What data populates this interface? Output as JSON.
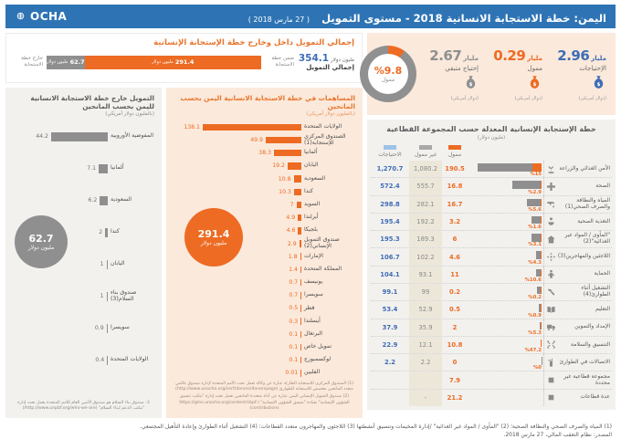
{
  "header": {
    "org": "OCHA",
    "title": "اليمن: خطة الاستجابة الانسانية 2018 - مستوى التمويل",
    "date": "( 27 مارس 2018 )"
  },
  "stats": {
    "cards": [
      {
        "value": "2.96",
        "unit": "مليار",
        "label": "الإحتياجات",
        "currency": "(دولار أمريكي)",
        "color": "#3f6db5"
      },
      {
        "value": "0.29",
        "unit": "مليار",
        "label": "ممول",
        "currency": "(دولار أمريكي)",
        "color": "#ed6b23"
      },
      {
        "value": "2.67",
        "unit": "مليار",
        "label": "إحتياج متبقي",
        "currency": "(دولار أمريكي)",
        "color": "#8f8f8f"
      }
    ],
    "donut": {
      "pct": 9.8,
      "pct_label": "%9.8",
      "label": "ممول"
    }
  },
  "summary": {
    "title": "إجمالي التمويل داخل وخارج خطة الإستجابة الإنسانية",
    "total_value": "354.1",
    "total_unit": "مليون دولار",
    "total_label": "إجمالي التمويل",
    "inside_label": "ضمن خطة الاستجابة",
    "outside_label": "خارج خطة الاستجابة"
  },
  "outside": {
    "circle_value": "62.7",
    "circle_unit": "مليون دولار",
    "footnote": "3- صندوق بناء السلام هو صندوق الأمين العام للأمم المتحدة يعمل تحت إدارة \"مكتب الدعم لبناء السلام\" (http://www.unpbf.org/who-we-are/)"
  },
  "inside": {
    "circle_value": "291.4",
    "circle_unit": "مليون دولار",
    "footnote1": "(1) الصندوق المركزي للاستجابة الطارئة عبارة عن وكالة تعمل تحت الأمم المتحدة لإدارة صندوق عالمي متعدد المانحين مخصص للاستجابة للطوارئ (http://www.unocha.org/cerf/donors/donorspage)",
    "footnote2": "(2) صندوق التمويل الإنساني اليمن عبارة عن أداة متعددة المانحين تعمل تحت إدارة \"مكتب تنسيق الشؤون الإنسانية\" بقيادة \"منسق الشؤون الإنسانية\" (https://gms.unocha.org/content/cbpf-contributions)"
  },
  "footer": {
    "line1": "(1) المياه والصرف الصحي والنظافة الصحية؛ (2) \"المأوى / المواد غير الغذائية\" /إدارة المخيمات وتنسيق أنشطتها (3) اللاجئون والمهاجرون متعدد القطاعات؛ (4) التشغيل أثناء الطوارئ وإعادة التأهيل المجتمعي.",
    "line2": "المصدر: نظام التعقب المالي، 27 مارس 2018."
  },
  "chart_data": [
    {
      "id": "funding_split",
      "type": "bar",
      "title": "إجمالي التمويل داخل وخارج خطة الإستجابة الإنسانية",
      "categories": [
        "ضمن خطة الاستجابة",
        "خارج خطة الاستجابة"
      ],
      "values": [
        291.4,
        62.7
      ],
      "total": 354.1,
      "unit": "مليون دولار",
      "colors": [
        "#ed6b23",
        "#8f8f8f"
      ]
    },
    {
      "id": "outside_donors",
      "type": "bar",
      "title": "التمويل خارج خطة الاستجابة الانسانية لليمن بحسب المانحين",
      "subtitle": "(بالمليون دولار أمريكي)",
      "total_label": "62.7",
      "unit": "مليون دولار",
      "categories": [
        "المفوضية الأوروبية",
        "ألمانيا",
        "السعودية",
        "كندا",
        "اليابان",
        "صندوق بناء السلام(3)",
        "سويسرا",
        "الولايات المتحدة"
      ],
      "values": [
        44.2,
        7.1,
        6.2,
        2,
        1,
        1,
        0.9,
        0.4
      ],
      "xmax": 44.2
    },
    {
      "id": "inside_donors",
      "type": "bar",
      "title": "المساهمات في خطة الاستجابة الانسانية اليمن بحسب المانحين",
      "subtitle": "(بالمليون دولار أمريكي)",
      "total_label": "291.4",
      "unit": "مليون دولار",
      "categories": [
        "الولايات المتحدة",
        "الصندوق المركزي للإستجابة(1)",
        "ألمانيا",
        "اليابان",
        "السعودية",
        "كندا",
        "السويد",
        "أيرلندا",
        "بلجيكا",
        "صندوق التمويل الإنساني(2)",
        "الإمارات",
        "المملكة المتحدة",
        "يونيسف",
        "سويسرا",
        "قطر",
        "أيسلندا",
        "البرتغال",
        "تمويل خاص",
        "لوكسمبورج",
        "الفلبين"
      ],
      "values": [
        138.1,
        49.9,
        38.3,
        19.2,
        10.8,
        10.3,
        7,
        4.9,
        4.6,
        2.9,
        1.8,
        1.4,
        0.7,
        0.7,
        0.5,
        0.3,
        0.1,
        0.1,
        0.1,
        0.01
      ],
      "xmax": 138.1
    },
    {
      "id": "sectors",
      "type": "table",
      "title": "خطة الإستجابة الإنسانية المعدلة حسب المجموعة القطاعية",
      "subtitle": "(مليون دولار)",
      "legend": [
        {
          "label": "ممول",
          "color": "#ed6b23"
        },
        {
          "label": "غير ممول",
          "color": "#a8a8a8"
        },
        {
          "label": "الاحتياجات",
          "color": "#9dc3e6"
        }
      ],
      "columns": [
        "الاحتياجات",
        "غير ممول",
        "ممول"
      ],
      "req_max": 1270.7,
      "rows": [
        {
          "name": "الأمن الغذائي والزراعة",
          "icon": "agriculture-icon",
          "requirements": "1,270.7",
          "unfunded": "1,080.2",
          "funded": "190.5",
          "pct": "%15",
          "req_num": 1270.7,
          "funded_num": 190.5
        },
        {
          "name": "الصحة",
          "icon": "health-icon",
          "requirements": "572.4",
          "unfunded": "555.7",
          "funded": "16.8",
          "pct": "%2.9",
          "req_num": 572.4,
          "funded_num": 16.8
        },
        {
          "name": "المياه والنظافة والصرف الصحي(1)",
          "icon": "water-icon",
          "requirements": "298.8",
          "unfunded": "282.1",
          "funded": "16.7",
          "pct": "%5.6",
          "req_num": 298.8,
          "funded_num": 16.7
        },
        {
          "name": "التغذية الصحية",
          "icon": "nutrition-icon",
          "requirements": "195.4",
          "unfunded": "192.2",
          "funded": "3.2",
          "pct": "%1.6",
          "req_num": 195.4,
          "funded_num": 3.2
        },
        {
          "name": "\"المأوى / المواد غير الغذائية\"(2)",
          "icon": "shelter-icon",
          "requirements": "195.3",
          "unfunded": "189.3",
          "funded": "6",
          "pct": "%3.1",
          "req_num": 195.3,
          "funded_num": 6
        },
        {
          "name": "اللاجئين والمهاجرين(3)",
          "icon": "refugees-icon",
          "requirements": "106.7",
          "unfunded": "102.2",
          "funded": "4.6",
          "pct": "%4.3",
          "req_num": 106.7,
          "funded_num": 4.6
        },
        {
          "name": "الحماية",
          "icon": "protection-icon",
          "requirements": "104.1",
          "unfunded": "93.1",
          "funded": "11",
          "pct": "%10.6",
          "req_num": 104.1,
          "funded_num": 11
        },
        {
          "name": "التشغيل أثناء الطوارئ(4)",
          "icon": "employment-icon",
          "requirements": "99.1",
          "unfunded": "99",
          "funded": "0.2",
          "pct": "%0.2",
          "req_num": 99.1,
          "funded_num": 0.2
        },
        {
          "name": "التعليم",
          "icon": "education-icon",
          "requirements": "53.4",
          "unfunded": "52.9",
          "funded": "0.5",
          "pct": "%0.9",
          "req_num": 53.4,
          "funded_num": 0.5
        },
        {
          "name": "الإمداد والتموين",
          "icon": "logistics-icon",
          "requirements": "37.9",
          "unfunded": "35.9",
          "funded": "2",
          "pct": "%5.3",
          "req_num": 37.9,
          "funded_num": 2
        },
        {
          "name": "التنسيق والسلامة",
          "icon": "coordination-icon",
          "requirements": "22.9",
          "unfunded": "12.1",
          "funded": "10.8",
          "pct": "%47.2",
          "req_num": 22.9,
          "funded_num": 10.8
        },
        {
          "name": "الاتصالات في الطوارئ",
          "icon": "telecom-icon",
          "requirements": "2.2",
          "unfunded": "2.2",
          "funded": "0",
          "pct": "%0",
          "req_num": 2.2,
          "funded_num": 0
        },
        {
          "name": "مجموعة قطاعية غير محددة",
          "icon": "square-icon",
          "requirements": "",
          "unfunded": "",
          "funded": "7.9",
          "pct": "",
          "req_num": 0,
          "funded_num": 7.9
        },
        {
          "name": "عدة قطاعات",
          "icon": "square-icon",
          "requirements": "",
          "unfunded": "-",
          "funded": "21.2",
          "pct": "",
          "req_num": 0,
          "funded_num": 21.2
        }
      ]
    }
  ]
}
